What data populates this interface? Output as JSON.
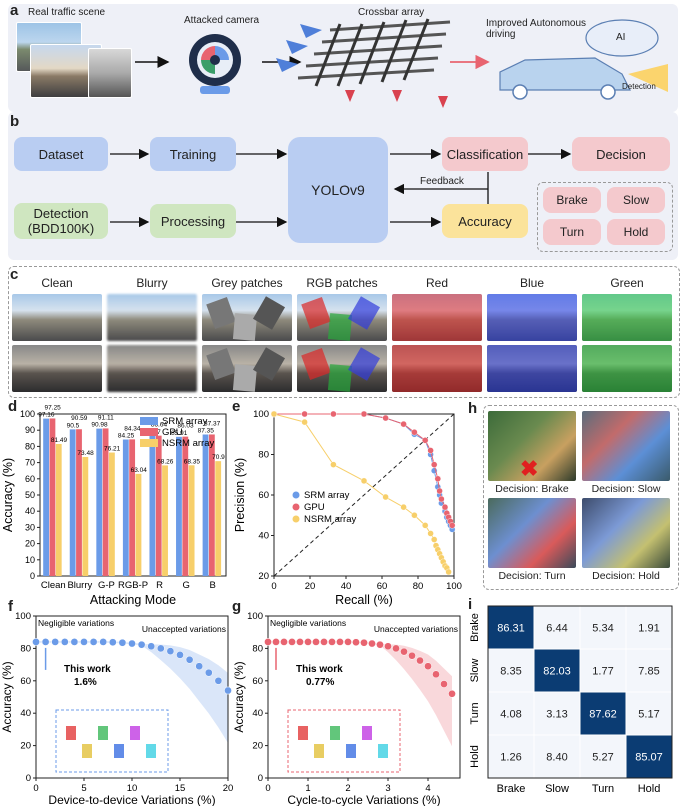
{
  "panel_a": {
    "label": "a",
    "scene": "Real traffic scene",
    "camera": "Attacked camera",
    "crossbar": "Crossbar array",
    "auto": "Improved Autonomous driving",
    "ai": "AI",
    "detection": "Detection"
  },
  "panel_b": {
    "label": "b",
    "dataset": "Dataset",
    "training": "Training",
    "yolo": "YOLOv9",
    "classification": "Classification",
    "decision": "Decision",
    "feedback": "Feedback",
    "detection_line1": "Detection",
    "detection_line2": "(BDD100K)",
    "processing": "Processing",
    "accuracy": "Accuracy",
    "brake": "Brake",
    "slow": "Slow",
    "turn": "Turn",
    "hold": "Hold"
  },
  "panel_c": {
    "label": "c",
    "headers": [
      "Clean",
      "Blurry",
      "Grey patches",
      "RGB patches",
      "Red",
      "Blue",
      "Green"
    ]
  },
  "colors": {
    "srm": "#6b9be8",
    "gpu": "#e86470",
    "nsrm": "#f7cf6a",
    "panel_a_bg": "#eef0f7",
    "blue_box": "#b9cdf2",
    "pink_box": "#f4c9cd",
    "green_box": "#cfe6c0",
    "yellow_box": "#fbe39b"
  },
  "chart_data": [
    {
      "id": "d",
      "type": "bar",
      "label": "d",
      "xlabel": "Attacking Mode",
      "ylabel": "Accuracy (%)",
      "ylim": [
        0,
        100
      ],
      "yticks": [
        "0",
        "10",
        "20",
        "30",
        "40",
        "50",
        "60",
        "70",
        "80",
        "90",
        "100"
      ],
      "categories": [
        "Clean",
        "Blurry",
        "G-P",
        "RGB-P",
        "R",
        "G",
        "B"
      ],
      "legend_position": "top-right",
      "series": [
        {
          "name": "SRM array",
          "values": [
            97.16,
            90.5,
            90.98,
            84.25,
            86.57,
            85.91,
            87.35
          ]
        },
        {
          "name": "GPU",
          "values": [
            97.25,
            90.59,
            91.11,
            84.34,
            86.64,
            86.03,
            87.37
          ]
        },
        {
          "name": "NSRM array",
          "values": [
            81.49,
            73.48,
            76.21,
            63.04,
            68.26,
            68.35,
            70.9
          ]
        }
      ]
    },
    {
      "id": "e",
      "type": "line",
      "label": "e",
      "xlabel": "Recall (%)",
      "ylabel": "Precision (%)",
      "xlim": [
        0,
        100
      ],
      "ylim": [
        20,
        100
      ],
      "xticks": [
        "0",
        "20",
        "40",
        "60",
        "80",
        "100"
      ],
      "yticks": [
        "20",
        "40",
        "60",
        "80",
        "100"
      ],
      "series": [
        {
          "name": "SRM array",
          "x": [
            0,
            17,
            33,
            50,
            62,
            72,
            78,
            84,
            87,
            89,
            91,
            92,
            93,
            95,
            96,
            97,
            98,
            99
          ],
          "y": [
            100,
            100,
            100,
            100,
            98,
            95,
            90,
            87,
            80,
            72,
            64,
            60,
            56,
            52,
            49,
            47,
            45,
            43
          ]
        },
        {
          "name": "GPU",
          "x": [
            0,
            17,
            33,
            50,
            62,
            72,
            78,
            84,
            87,
            89,
            91,
            92,
            93,
            95,
            96,
            97,
            98,
            99
          ],
          "y": [
            100,
            100,
            100,
            100,
            98,
            95,
            91,
            87,
            82,
            75,
            68,
            62,
            58,
            54,
            51,
            49,
            47,
            45
          ]
        },
        {
          "name": "NSRM array",
          "x": [
            0,
            17,
            33,
            50,
            62,
            72,
            78,
            84,
            87,
            89,
            90,
            91,
            92,
            93,
            94,
            95,
            96,
            97
          ],
          "y": [
            100,
            96,
            75,
            67,
            59,
            54,
            50,
            45,
            41,
            38,
            35,
            33,
            31,
            29,
            27,
            25,
            24,
            22
          ]
        }
      ]
    },
    {
      "id": "f",
      "type": "scatter",
      "label": "f",
      "xlabel": "Device-to-device Variations (%)",
      "ylabel": "Accuracy (%)",
      "xlim": [
        0,
        20
      ],
      "ylim": [
        0,
        100
      ],
      "xticks": [
        "0",
        "5",
        "10",
        "15",
        "20"
      ],
      "yticks": [
        "0",
        "20",
        "40",
        "60",
        "80",
        "100"
      ],
      "annotation_left": "Negligible variations",
      "annotation_right": "Unaccepted variations",
      "this_work": "This work",
      "this_work_value": "1.6%",
      "x": [
        0,
        1,
        2,
        3,
        4,
        5,
        6,
        7,
        8,
        9,
        10,
        11,
        12,
        13,
        14,
        15,
        16,
        17,
        18,
        19,
        20
      ],
      "y": [
        84,
        84,
        84,
        84,
        84,
        84,
        84,
        84,
        83.8,
        83.5,
        83,
        82.3,
        81.3,
        80,
        78.3,
        76,
        73,
        69,
        65,
        60,
        54
      ]
    },
    {
      "id": "g",
      "type": "scatter",
      "label": "g",
      "xlabel": "Cycle-to-cycle Variations (%)",
      "ylabel": "Accuracy (%)",
      "xlim": [
        0,
        4.8
      ],
      "ylim": [
        0,
        100
      ],
      "xticks": [
        "0",
        "1",
        "2",
        "3",
        "4"
      ],
      "yticks": [
        "0",
        "20",
        "40",
        "60",
        "80",
        "100"
      ],
      "annotation_left": "Negligible variations",
      "annotation_right": "Unaccepted variations",
      "this_work": "This work",
      "this_work_value": "0.77%",
      "x": [
        0,
        0.2,
        0.4,
        0.6,
        0.8,
        1.0,
        1.2,
        1.4,
        1.6,
        1.8,
        2.0,
        2.2,
        2.4,
        2.6,
        2.8,
        3.0,
        3.2,
        3.4,
        3.6,
        3.8,
        4.0,
        4.2,
        4.4,
        4.6
      ],
      "y": [
        84,
        84,
        84,
        84,
        84,
        84,
        84,
        84,
        84,
        84,
        84,
        83.8,
        83.5,
        83,
        82.3,
        81.3,
        80,
        78,
        75.5,
        72.5,
        69,
        64,
        58,
        52
      ]
    },
    {
      "id": "i",
      "type": "heatmap",
      "label": "i",
      "rows": [
        "Brake",
        "Slow",
        "Turn",
        "Hold"
      ],
      "cols": [
        "Brake",
        "Slow",
        "Turn",
        "Hold"
      ],
      "values": [
        [
          86.31,
          6.44,
          5.34,
          1.91
        ],
        [
          8.35,
          82.03,
          1.77,
          7.85
        ],
        [
          4.08,
          3.13,
          87.62,
          5.17
        ],
        [
          1.26,
          8.4,
          5.27,
          85.07
        ]
      ]
    }
  ],
  "panel_h": {
    "label": "h",
    "decisions": [
      "Decision: Brake",
      "Decision: Slow",
      "Decision: Turn",
      "Decision: Hold"
    ]
  }
}
